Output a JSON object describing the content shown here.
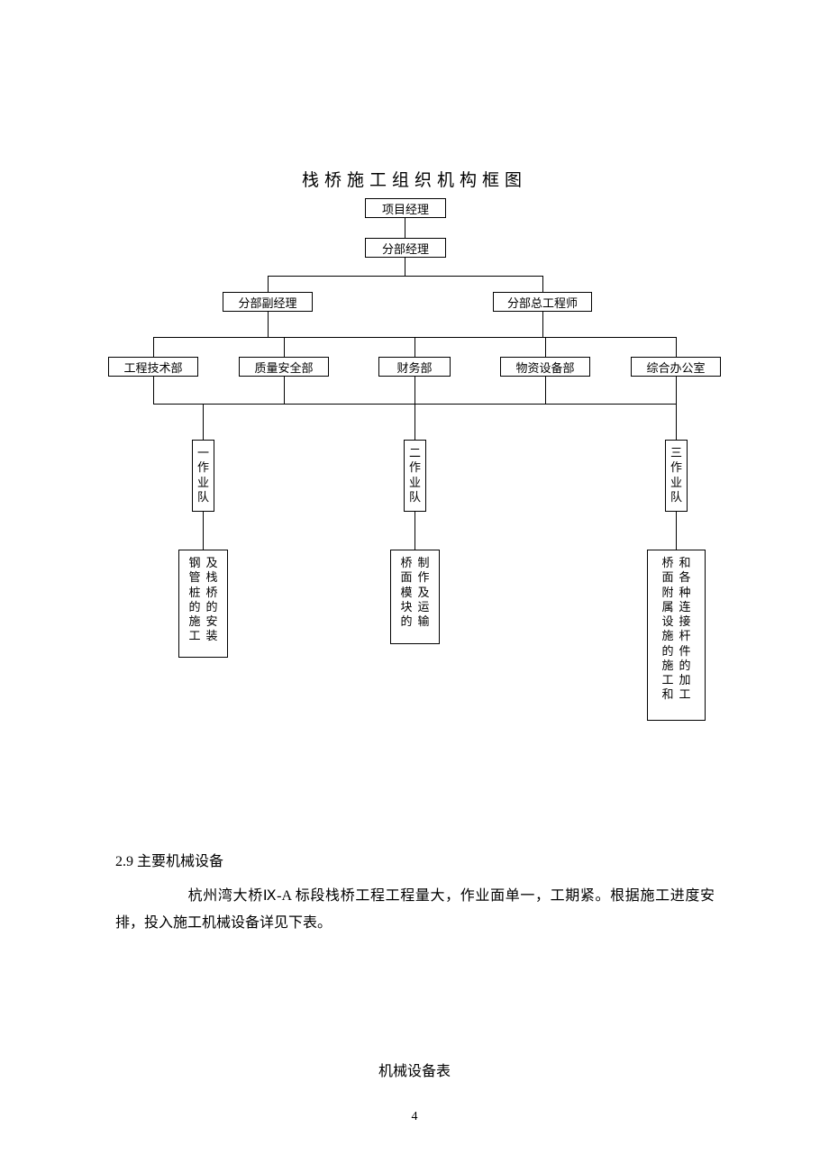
{
  "title": "栈桥施工组织机构框图",
  "org": {
    "level1": "项目经理",
    "level2": "分部经理",
    "level3_left": "分部副经理",
    "level3_right": "分部总工程师",
    "dept1": "工程技术部",
    "dept2": "质量安全部",
    "dept3": "财务部",
    "dept4": "物资设备部",
    "dept5": "综合办公室",
    "team1": [
      "一",
      "作",
      "业",
      "队"
    ],
    "team2": [
      "二",
      "作",
      "业",
      "队"
    ],
    "team3": [
      "三",
      "作",
      "业",
      "队"
    ],
    "task1_col1": [
      "钢",
      "管",
      "桩",
      "的",
      "施",
      "工"
    ],
    "task1_col2": [
      "及",
      "栈",
      "桥",
      "的",
      "安",
      "装"
    ],
    "task2_col1": [
      "桥",
      "面",
      "模",
      "块",
      "的"
    ],
    "task2_col2": [
      "制",
      "作",
      "及",
      "运",
      "输"
    ],
    "task3_col1": [
      "桥",
      "面",
      "附",
      "属",
      "设",
      "施",
      "的",
      "施",
      "工",
      "和"
    ],
    "task3_col2": [
      "和",
      "各",
      "种",
      "连",
      "接",
      "杆",
      "件",
      "的",
      "加",
      "工"
    ]
  },
  "section": {
    "heading": "2.9 主要机械设备",
    "body_prefix": "杭州湾大桥Ⅸ-A 标段栈桥工程工程量大，作业面单一，工期紧。根据施工进度安排，投入施工机械设备详见下表。"
  },
  "table_title": "机械设备表",
  "page_number": "4",
  "style": {
    "background_color": "#ffffff",
    "text_color": "#000000",
    "line_color": "#000000",
    "title_fontsize": 19,
    "body_fontsize": 16,
    "box_fontsize": 13
  }
}
